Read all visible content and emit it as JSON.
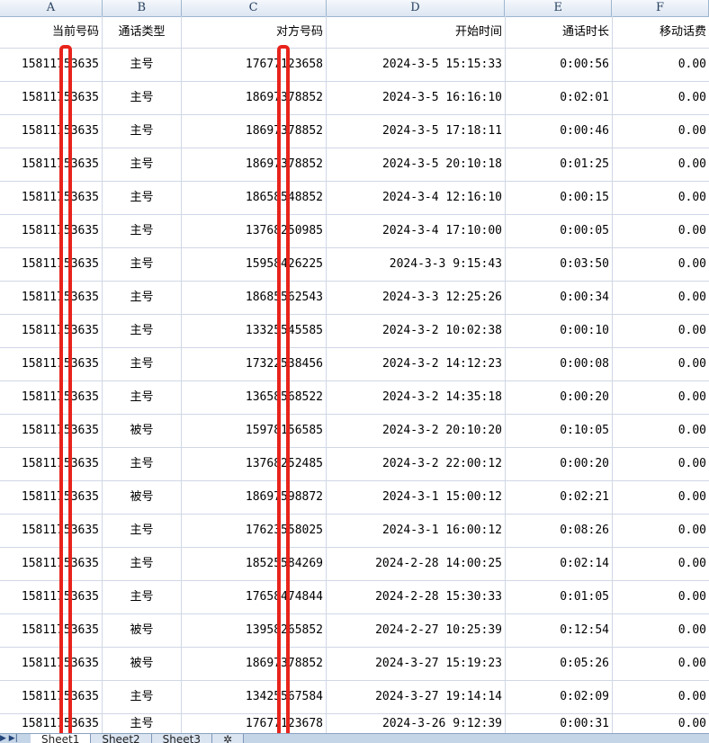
{
  "columns": [
    "A",
    "B",
    "C",
    "D",
    "E",
    "F"
  ],
  "headers": [
    "当前号码",
    "通话类型",
    "对方号码",
    "开始时间",
    "通话时长",
    "移动话费"
  ],
  "rows": [
    [
      "15811753635",
      "主号",
      "17677123658",
      "2024-3-5 15:15:33",
      "0:00:56",
      "0.00"
    ],
    [
      "15811753635",
      "主号",
      "18697378852",
      "2024-3-5 16:16:10",
      "0:02:01",
      "0.00"
    ],
    [
      "15811753635",
      "主号",
      "18697378852",
      "2024-3-5 17:18:11",
      "0:00:46",
      "0.00"
    ],
    [
      "15811753635",
      "主号",
      "18697378852",
      "2024-3-5 20:10:18",
      "0:01:25",
      "0.00"
    ],
    [
      "15811753635",
      "主号",
      "18658548852",
      "2024-3-4 12:16:10",
      "0:00:15",
      "0.00"
    ],
    [
      "15811753635",
      "主号",
      "13768250985",
      "2024-3-4 17:10:00",
      "0:00:05",
      "0.00"
    ],
    [
      "15811753635",
      "主号",
      "15958426225",
      "2024-3-3 9:15:43",
      "0:03:50",
      "0.00"
    ],
    [
      "15811753635",
      "主号",
      "18685562543",
      "2024-3-3 12:25:26",
      "0:00:34",
      "0.00"
    ],
    [
      "15811753635",
      "主号",
      "13325545585",
      "2024-3-2 10:02:38",
      "0:00:10",
      "0.00"
    ],
    [
      "15811753635",
      "主号",
      "17322538456",
      "2024-3-2 14:12:23",
      "0:00:08",
      "0.00"
    ],
    [
      "15811753635",
      "主号",
      "13658568522",
      "2024-3-2 14:35:18",
      "0:00:20",
      "0.00"
    ],
    [
      "15811753635",
      "被号",
      "15978156585",
      "2024-3-2 20:10:20",
      "0:10:05",
      "0.00"
    ],
    [
      "15811753635",
      "主号",
      "13768252485",
      "2024-3-2 22:00:12",
      "0:00:20",
      "0.00"
    ],
    [
      "15811753635",
      "被号",
      "18697598872",
      "2024-3-1 15:00:12",
      "0:02:21",
      "0.00"
    ],
    [
      "15811753635",
      "主号",
      "17623558025",
      "2024-3-1 16:00:12",
      "0:08:26",
      "0.00"
    ],
    [
      "15811753635",
      "主号",
      "18525584269",
      "2024-2-28 14:00:25",
      "0:02:14",
      "0.00"
    ],
    [
      "15811753635",
      "主号",
      "17658474844",
      "2024-2-28 15:30:33",
      "0:01:05",
      "0.00"
    ],
    [
      "15811753635",
      "被号",
      "13958265852",
      "2024-2-27 10:25:39",
      "0:12:54",
      "0.00"
    ],
    [
      "15811753635",
      "被号",
      "18697378852",
      "2024-3-27 15:19:23",
      "0:05:26",
      "0.00"
    ],
    [
      "15811753635",
      "主号",
      "13425567584",
      "2024-3-27 19:14:14",
      "0:02:09",
      "0.00"
    ],
    [
      "15811753635",
      "主号",
      "17677123678",
      "2024-3-26 9:12:39",
      "0:00:31",
      "0.00"
    ]
  ],
  "sheet_tabs": [
    "Sheet1",
    "Sheet2",
    "Sheet3"
  ],
  "active_sheet": "Sheet1",
  "highlight_color": "#e8231b"
}
